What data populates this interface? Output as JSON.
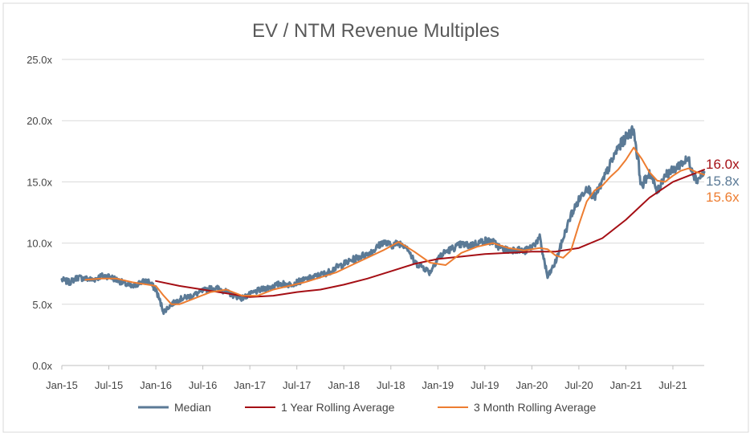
{
  "chart_data": {
    "type": "line",
    "title": "EV / NTM Revenue Multiples",
    "xlabel": "",
    "ylabel": "",
    "x_tick_labels": [
      "Jan-15",
      "Jul-15",
      "Jan-16",
      "Jul-16",
      "Jan-17",
      "Jul-17",
      "Jan-18",
      "Jul-18",
      "Jan-19",
      "Jul-19",
      "Jan-20",
      "Jul-20",
      "Jan-21",
      "Jul-21"
    ],
    "x_range": [
      "2015-01",
      "2021-11"
    ],
    "y_tick_labels": [
      "0.0x",
      "5.0x",
      "10.0x",
      "15.0x",
      "20.0x",
      "25.0x"
    ],
    "ylim": [
      0,
      25
    ],
    "grid": "horizontal",
    "legend_position": "bottom",
    "series": [
      {
        "name": "Median",
        "color": "#5b7a96",
        "end_label": "15.8x",
        "points": [
          [
            "2015-01",
            7.0
          ],
          [
            "2015-02",
            6.8
          ],
          [
            "2015-03",
            7.2
          ],
          [
            "2015-04",
            7.1
          ],
          [
            "2015-05",
            7.0
          ],
          [
            "2015-06",
            7.3
          ],
          [
            "2015-07",
            7.3
          ],
          [
            "2015-08",
            7.0
          ],
          [
            "2015-09",
            6.7
          ],
          [
            "2015-10",
            6.4
          ],
          [
            "2015-11",
            6.8
          ],
          [
            "2015-12",
            6.9
          ],
          [
            "2016-01",
            6.2
          ],
          [
            "2016-02",
            4.4
          ],
          [
            "2016-03",
            5.0
          ],
          [
            "2016-04",
            5.4
          ],
          [
            "2016-05",
            5.6
          ],
          [
            "2016-06",
            5.8
          ],
          [
            "2016-07",
            6.1
          ],
          [
            "2016-08",
            6.3
          ],
          [
            "2016-09",
            6.3
          ],
          [
            "2016-10",
            6.0
          ],
          [
            "2016-11",
            5.7
          ],
          [
            "2016-12",
            5.5
          ],
          [
            "2017-01",
            5.8
          ],
          [
            "2017-02",
            6.1
          ],
          [
            "2017-03",
            6.3
          ],
          [
            "2017-04",
            6.5
          ],
          [
            "2017-05",
            6.7
          ],
          [
            "2017-06",
            6.6
          ],
          [
            "2017-07",
            6.8
          ],
          [
            "2017-08",
            7.0
          ],
          [
            "2017-09",
            7.2
          ],
          [
            "2017-10",
            7.4
          ],
          [
            "2017-11",
            7.6
          ],
          [
            "2017-12",
            8.0
          ],
          [
            "2018-01",
            8.3
          ],
          [
            "2018-02",
            8.6
          ],
          [
            "2018-03",
            8.9
          ],
          [
            "2018-04",
            9.1
          ],
          [
            "2018-05",
            9.5
          ],
          [
            "2018-06",
            10.1
          ],
          [
            "2018-07",
            9.8
          ],
          [
            "2018-08",
            10.0
          ],
          [
            "2018-09",
            9.8
          ],
          [
            "2018-10",
            8.4
          ],
          [
            "2018-11",
            8.1
          ],
          [
            "2018-12",
            7.6
          ],
          [
            "2019-01",
            8.8
          ],
          [
            "2019-02",
            9.3
          ],
          [
            "2019-03",
            9.6
          ],
          [
            "2019-04",
            9.9
          ],
          [
            "2019-05",
            9.8
          ],
          [
            "2019-06",
            10.0
          ],
          [
            "2019-07",
            10.2
          ],
          [
            "2019-08",
            10.1
          ],
          [
            "2019-09",
            9.6
          ],
          [
            "2019-10",
            9.4
          ],
          [
            "2019-11",
            9.5
          ],
          [
            "2019-12",
            9.3
          ],
          [
            "2020-01",
            9.7
          ],
          [
            "2020-02",
            10.4
          ],
          [
            "2020-03",
            7.2
          ],
          [
            "2020-04",
            8.4
          ],
          [
            "2020-05",
            10.4
          ],
          [
            "2020-06",
            12.3
          ],
          [
            "2020-07",
            13.5
          ],
          [
            "2020-08",
            14.6
          ],
          [
            "2020-09",
            13.7
          ],
          [
            "2020-10",
            15.0
          ],
          [
            "2020-11",
            16.4
          ],
          [
            "2020-12",
            17.8
          ],
          [
            "2021-01",
            18.6
          ],
          [
            "2021-02",
            19.3
          ],
          [
            "2021-03",
            14.6
          ],
          [
            "2021-04",
            15.8
          ],
          [
            "2021-05",
            14.2
          ],
          [
            "2021-06",
            15.6
          ],
          [
            "2021-07",
            15.9
          ],
          [
            "2021-08",
            16.5
          ],
          [
            "2021-09",
            16.8
          ],
          [
            "2021-10",
            15.1
          ],
          [
            "2021-11",
            15.8
          ]
        ]
      },
      {
        "name": "1 Year Rolling Average",
        "color": "#a50f15",
        "end_label": "16.0x",
        "points": [
          [
            "2016-01",
            6.9
          ],
          [
            "2016-04",
            6.5
          ],
          [
            "2016-07",
            6.2
          ],
          [
            "2016-10",
            5.9
          ],
          [
            "2017-01",
            5.6
          ],
          [
            "2017-04",
            5.7
          ],
          [
            "2017-07",
            6.0
          ],
          [
            "2017-10",
            6.2
          ],
          [
            "2018-01",
            6.6
          ],
          [
            "2018-04",
            7.1
          ],
          [
            "2018-07",
            7.7
          ],
          [
            "2018-10",
            8.3
          ],
          [
            "2019-01",
            8.7
          ],
          [
            "2019-04",
            8.9
          ],
          [
            "2019-07",
            9.1
          ],
          [
            "2019-10",
            9.2
          ],
          [
            "2020-01",
            9.3
          ],
          [
            "2020-04",
            9.3
          ],
          [
            "2020-07",
            9.6
          ],
          [
            "2020-10",
            10.4
          ],
          [
            "2021-01",
            11.9
          ],
          [
            "2021-04",
            13.7
          ],
          [
            "2021-07",
            15.0
          ],
          [
            "2021-11",
            16.0
          ]
        ]
      },
      {
        "name": "3 Month Rolling Average",
        "color": "#ed7d31",
        "end_label": "15.6x",
        "points": [
          [
            "2015-04",
            7.0
          ],
          [
            "2015-06",
            7.1
          ],
          [
            "2015-08",
            7.1
          ],
          [
            "2015-10",
            6.8
          ],
          [
            "2015-12",
            6.6
          ],
          [
            "2016-01",
            6.5
          ],
          [
            "2016-02",
            5.7
          ],
          [
            "2016-03",
            5.0
          ],
          [
            "2016-04",
            5.0
          ],
          [
            "2016-06",
            5.5
          ],
          [
            "2016-08",
            6.0
          ],
          [
            "2016-10",
            6.2
          ],
          [
            "2016-12",
            5.7
          ],
          [
            "2017-02",
            5.7
          ],
          [
            "2017-04",
            6.2
          ],
          [
            "2017-06",
            6.5
          ],
          [
            "2017-08",
            6.8
          ],
          [
            "2017-10",
            7.2
          ],
          [
            "2017-12",
            7.6
          ],
          [
            "2018-02",
            8.2
          ],
          [
            "2018-04",
            8.8
          ],
          [
            "2018-06",
            9.4
          ],
          [
            "2018-08",
            10.1
          ],
          [
            "2018-10",
            9.3
          ],
          [
            "2018-12",
            8.4
          ],
          [
            "2019-02",
            8.2
          ],
          [
            "2019-04",
            9.2
          ],
          [
            "2019-06",
            9.7
          ],
          [
            "2019-08",
            10.0
          ],
          [
            "2019-10",
            9.6
          ],
          [
            "2019-12",
            9.4
          ],
          [
            "2020-02",
            9.6
          ],
          [
            "2020-03",
            9.5
          ],
          [
            "2020-04",
            9.0
          ],
          [
            "2020-05",
            8.8
          ],
          [
            "2020-06",
            9.4
          ],
          [
            "2020-07",
            11.5
          ],
          [
            "2020-08",
            13.4
          ],
          [
            "2020-09",
            14.3
          ],
          [
            "2020-10",
            14.7
          ],
          [
            "2020-11",
            15.4
          ],
          [
            "2020-12",
            16.0
          ],
          [
            "2021-01",
            16.8
          ],
          [
            "2021-02",
            17.8
          ],
          [
            "2021-03",
            16.9
          ],
          [
            "2021-04",
            15.8
          ],
          [
            "2021-05",
            15.1
          ],
          [
            "2021-06",
            15.0
          ],
          [
            "2021-07",
            15.5
          ],
          [
            "2021-08",
            15.9
          ],
          [
            "2021-09",
            16.1
          ],
          [
            "2021-10",
            15.8
          ],
          [
            "2021-11",
            15.6
          ]
        ]
      }
    ]
  }
}
